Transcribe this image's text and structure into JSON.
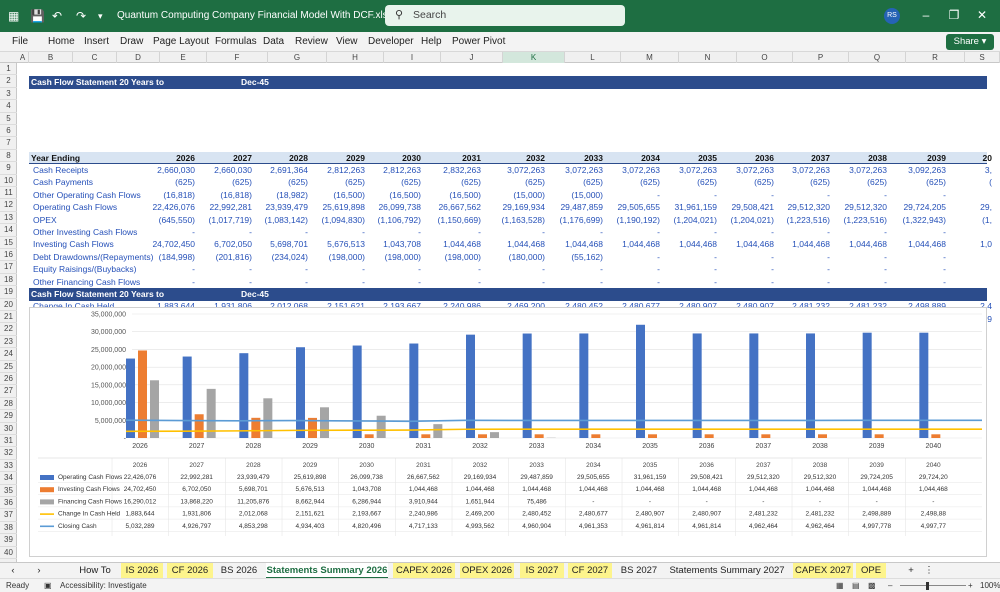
{
  "window": {
    "title": "Quantum Computing Company Financial Model With DCF.xlsx  -  Excel",
    "search_placeholder": "Search",
    "user_initials": "RS"
  },
  "menu": [
    "File",
    "Home",
    "Insert",
    "Draw",
    "Page Layout",
    "Formulas",
    "Data",
    "Review",
    "View",
    "Developer",
    "Help",
    "Power Pivot"
  ],
  "share_label": "Share",
  "columns": [
    "A",
    "B",
    "C",
    "D",
    "E",
    "F",
    "G",
    "H",
    "I",
    "J",
    "K",
    "L",
    "M",
    "N",
    "O",
    "P",
    "Q",
    "R",
    "S"
  ],
  "rows": [
    "1",
    "2",
    "3",
    "4",
    "5",
    "6",
    "7",
    "8",
    "9",
    "10",
    "11",
    "12",
    "13",
    "14",
    "15",
    "16",
    "17",
    "18",
    "19",
    "20",
    "21",
    "22",
    "23",
    "24",
    "25",
    "26",
    "27",
    "28",
    "29",
    "30",
    "31",
    "32",
    "33",
    "34",
    "35",
    "36",
    "37",
    "38",
    "39",
    "40"
  ],
  "section_title": "Cash Flow Statement 20 Years to",
  "section_date": "Dec-45",
  "year_header": "Year Ending",
  "years": [
    "2026",
    "2027",
    "2028",
    "2029",
    "2030",
    "2031",
    "2032",
    "2033",
    "2034",
    "2035",
    "2036",
    "2037",
    "2038",
    "2039",
    "20"
  ],
  "table_rows": [
    {
      "label": "Cash Receipts",
      "values": [
        "2,660,030",
        "2,660,030",
        "2,691,364",
        "2,812,263",
        "2,812,263",
        "2,832,263",
        "3,072,263",
        "3,072,263",
        "3,072,263",
        "3,072,263",
        "3,072,263",
        "3,072,263",
        "3,072,263",
        "3,092,263",
        "3,"
      ]
    },
    {
      "label": "Cash Payments",
      "values": [
        "(625)",
        "(625)",
        "(625)",
        "(625)",
        "(625)",
        "(625)",
        "(625)",
        "(625)",
        "(625)",
        "(625)",
        "(625)",
        "(625)",
        "(625)",
        "(625)",
        "("
      ]
    },
    {
      "label": "Other Operating Cash Flows",
      "values": [
        "(16,818)",
        "(16,818)",
        "(18,982)",
        "(16,500)",
        "(16,500)",
        "(16,500)",
        "(15,000)",
        "(15,000)",
        "-",
        "-",
        "-",
        "-",
        "-",
        "-",
        ""
      ]
    },
    {
      "label": "Operating Cash Flows",
      "values": [
        "22,426,076",
        "22,992,281",
        "23,939,479",
        "25,619,898",
        "26,099,738",
        "26,667,562",
        "29,169,934",
        "29,487,859",
        "29,505,655",
        "31,961,159",
        "29,508,421",
        "29,512,320",
        "29,512,320",
        "29,724,205",
        "29,"
      ]
    },
    {
      "label": "OPEX",
      "values": [
        "(645,550)",
        "(1,017,719)",
        "(1,083,142)",
        "(1,094,830)",
        "(1,106,792)",
        "(1,150,669)",
        "(1,163,528)",
        "(1,176,699)",
        "(1,190,192)",
        "(1,204,021)",
        "(1,204,021)",
        "(1,223,516)",
        "(1,223,516)",
        "(1,322,943)",
        "(1,"
      ]
    },
    {
      "label": "Other Investing Cash Flows",
      "values": [
        "-",
        "-",
        "-",
        "-",
        "-",
        "-",
        "-",
        "-",
        "-",
        "-",
        "-",
        "-",
        "-",
        "-",
        ""
      ]
    },
    {
      "label": "Investing Cash Flows",
      "values": [
        "24,702,450",
        "6,702,050",
        "5,698,701",
        "5,676,513",
        "1,043,708",
        "1,044,468",
        "1,044,468",
        "1,044,468",
        "1,044,468",
        "1,044,468",
        "1,044,468",
        "1,044,468",
        "1,044,468",
        "1,044,468",
        "1,0"
      ]
    },
    {
      "label": "Debt Drawdowns/(Repayments)",
      "values": [
        "(184,998)",
        "(201,816)",
        "(234,024)",
        "(198,000)",
        "(198,000)",
        "(198,000)",
        "(180,000)",
        "(55,162)",
        "-",
        "-",
        "-",
        "-",
        "-",
        "-",
        ""
      ]
    },
    {
      "label": "Equity Raisings/(Buybacks)",
      "values": [
        "-",
        "-",
        "-",
        "-",
        "-",
        "-",
        "-",
        "-",
        "-",
        "-",
        "-",
        "-",
        "-",
        "-",
        ""
      ]
    },
    {
      "label": "Other Financing Cash Flows",
      "values": [
        "-",
        "-",
        "-",
        "-",
        "-",
        "-",
        "-",
        "-",
        "-",
        "-",
        "-",
        "-",
        "-",
        "-",
        ""
      ]
    },
    {
      "label": "Financing Cash Flows",
      "values": [
        "16,290,012",
        "13,868,220",
        "11,205,876",
        "8,662,944",
        "6,286,944",
        "3,910,944",
        "1,651,944",
        "75,486",
        "-",
        "-",
        "-",
        "-",
        "-",
        "-",
        ""
      ]
    },
    {
      "label": "Change In Cash Held",
      "values": [
        "1,883,644",
        "1,931,806",
        "2,012,068",
        "2,151,621",
        "2,193,667",
        "2,240,986",
        "2,469,200",
        "2,480,452",
        "2,480,677",
        "2,480,907",
        "2,480,907",
        "2,481,232",
        "2,481,232",
        "2,498,889",
        "2,4"
      ]
    },
    {
      "label": "Closing Cash",
      "values": [
        "5,032,289",
        "4,926,797",
        "4,853,298",
        "4,934,403",
        "4,820,496",
        "4,717,133",
        "4,993,562",
        "4,960,904",
        "4,961,353",
        "4,961,814",
        "4,961,814",
        "4,962,464",
        "4,962,464",
        "4,997,778",
        "4,9"
      ]
    }
  ],
  "chart_data": {
    "type": "bar",
    "categories": [
      "2026",
      "2027",
      "2028",
      "2029",
      "2030",
      "2031",
      "2032",
      "2033",
      "2034",
      "2035",
      "2036",
      "2037",
      "2038",
      "2039",
      "2040"
    ],
    "ylim": [
      0,
      35000000
    ],
    "yticks": [
      "-",
      "5,000,000",
      "10,000,000",
      "15,000,000",
      "20,000,000",
      "25,000,000",
      "30,000,000",
      "35,000,000"
    ],
    "series": [
      {
        "name": "Operating Cash Flows",
        "kind": "bar",
        "color": "#4472c4",
        "values": [
          22426076,
          22992281,
          23939479,
          25619898,
          26099738,
          26667562,
          29169934,
          29487859,
          29505655,
          31961159,
          29508421,
          29512320,
          29512320,
          29724205,
          29724205
        ],
        "labels": [
          "22,426,076",
          "22,992,281",
          "23,939,479",
          "25,619,898",
          "26,099,738",
          "26,667,562",
          "29,169,934",
          "29,487,859",
          "29,505,655",
          "31,961,159",
          "29,508,421",
          "29,512,320",
          "29,512,320",
          "29,724,205",
          "29,724,20"
        ]
      },
      {
        "name": "Investing Cash Flows",
        "kind": "bar",
        "color": "#ed7d31",
        "values": [
          24702450,
          6702050,
          5698701,
          5676513,
          1043708,
          1044468,
          1044468,
          1044468,
          1044468,
          1044468,
          1044468,
          1044468,
          1044468,
          1044468,
          1044468
        ],
        "labels": [
          "24,702,450",
          "6,702,050",
          "5,698,701",
          "5,676,513",
          "1,043,708",
          "1,044,468",
          "1,044,468",
          "1,044,468",
          "1,044,468",
          "1,044,468",
          "1,044,468",
          "1,044,468",
          "1,044,468",
          "1,044,468",
          "1,044,468"
        ]
      },
      {
        "name": "Financing Cash Flows",
        "kind": "bar",
        "color": "#a5a5a5",
        "values": [
          16290012,
          13868220,
          11205876,
          8662944,
          6286944,
          3910944,
          1651944,
          75486,
          0,
          0,
          0,
          0,
          0,
          0,
          0
        ],
        "labels": [
          "16,290,012",
          "13,868,220",
          "11,205,876",
          "8,662,944",
          "6,286,944",
          "3,910,944",
          "1,651,944",
          "75,486",
          "-",
          "-",
          "-",
          "-",
          "-",
          "-",
          "-"
        ]
      },
      {
        "name": "Change In Cash Held",
        "kind": "line",
        "color": "#ffc000",
        "values": [
          1883644,
          1931806,
          2012068,
          2151621,
          2193667,
          2240986,
          2469200,
          2480452,
          2480677,
          2480907,
          2480907,
          2481232,
          2481232,
          2498889,
          2498889
        ],
        "labels": [
          "1,883,644",
          "1,931,806",
          "2,012,068",
          "2,151,621",
          "2,193,667",
          "2,240,986",
          "2,469,200",
          "2,480,452",
          "2,480,677",
          "2,480,907",
          "2,480,907",
          "2,481,232",
          "2,481,232",
          "2,498,889",
          "2,498,88"
        ]
      },
      {
        "name": "Closing Cash",
        "kind": "line",
        "color": "#5b9bd5",
        "values": [
          5032289,
          4926797,
          4853298,
          4934403,
          4820496,
          4717133,
          4993562,
          4960904,
          4961353,
          4961814,
          4961814,
          4962464,
          4962464,
          4997778,
          4997778
        ],
        "labels": [
          "5,032,289",
          "4,926,797",
          "4,853,298",
          "4,934,403",
          "4,820,496",
          "4,717,133",
          "4,993,562",
          "4,960,904",
          "4,961,353",
          "4,961,814",
          "4,961,814",
          "4,962,464",
          "4,962,464",
          "4,997,778",
          "4,997,77"
        ]
      }
    ]
  },
  "sheet_tabs": [
    {
      "label": "How To",
      "style": "plain"
    },
    {
      "label": "IS 2026",
      "style": "yellow"
    },
    {
      "label": "CF 2026",
      "style": "yellow"
    },
    {
      "label": "BS 2026",
      "style": "plain"
    },
    {
      "label": "Statements Summary 2026",
      "style": "active"
    },
    {
      "label": "CAPEX 2026",
      "style": "yellow"
    },
    {
      "label": "OPEX 2026",
      "style": "yellow"
    },
    {
      "label": "IS 2027",
      "style": "yellow"
    },
    {
      "label": "CF 2027",
      "style": "yellow"
    },
    {
      "label": "BS 2027",
      "style": "plain"
    },
    {
      "label": "Statements Summary 2027",
      "style": "plain"
    },
    {
      "label": "CAPEX 2027",
      "style": "yellow"
    },
    {
      "label": "OPE",
      "style": "yellow"
    }
  ],
  "status": {
    "ready": "Ready",
    "accessibility": "Accessibility: Investigate",
    "zoom": "100%"
  }
}
